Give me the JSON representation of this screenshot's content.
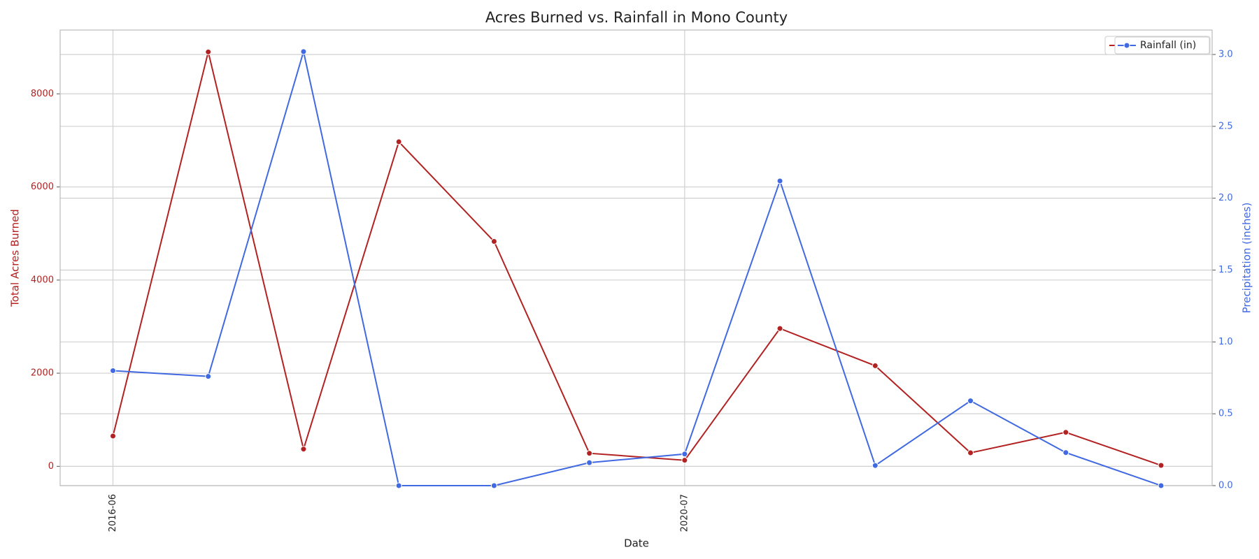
{
  "chart_data": {
    "type": "line",
    "title": "Acres Burned vs. Rainfall in Mono County",
    "xlabel": "Date",
    "ylabel": "Total Acres Burned",
    "y2label": "Precipitation (inches)",
    "categories": [
      "2016-06",
      null,
      null,
      null,
      null,
      null,
      "2020-07",
      null,
      null,
      null,
      null,
      null
    ],
    "series": [
      {
        "color": "#b22222",
        "values": [
          650,
          8900,
          370,
          6970,
          4830,
          280,
          130,
          2960,
          2160,
          290,
          730,
          20
        ]
      },
      {
        "name": "Rainfall (in)",
        "color": "#4169e1",
        "axis": "y2",
        "values": [
          0.8,
          0.76,
          3.02,
          0.0,
          0.0,
          0.16,
          0.22,
          2.12,
          0.14,
          0.59,
          0.23,
          0.0
        ]
      }
    ],
    "ylim": [
      -415,
      9370
    ],
    "yticks": [
      0,
      2000,
      4000,
      6000,
      8000
    ],
    "y2lim": [
      0,
      3.17
    ],
    "y2ticks": [
      {
        "value": 0,
        "label": "0.0"
      },
      0.5,
      {
        "value": 1,
        "label": "1.0"
      },
      1.5,
      {
        "value": 2,
        "label": "2.0"
      },
      2.5,
      {
        "value": 3,
        "label": "3.0"
      }
    ],
    "grid": true,
    "legend": "upper right"
  }
}
